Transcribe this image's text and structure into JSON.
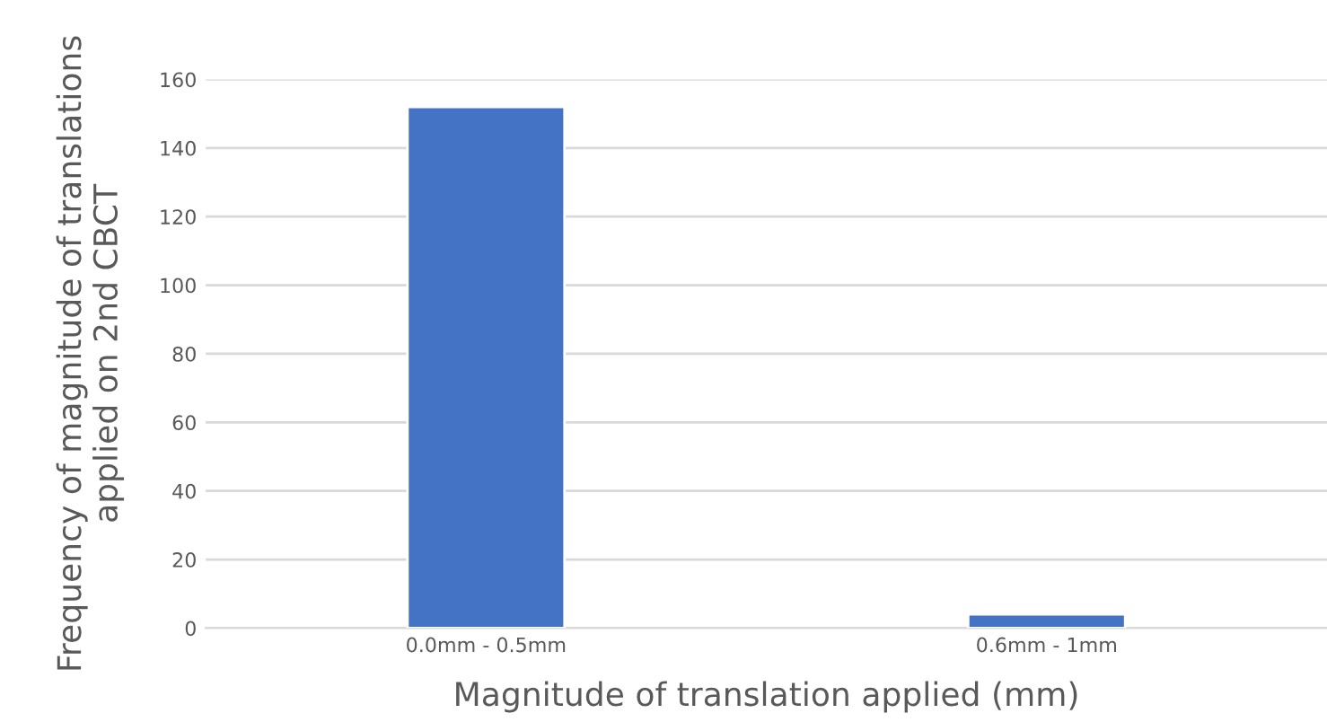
{
  "chart_data": {
    "type": "bar",
    "xlabel": "Magnitude of translation applied (mm)",
    "ylabel": "Frequency of magnitude of translations\napplied on 2nd CBCT",
    "categories": [
      "0.0mm - 0.5mm",
      "0.6mm - 1mm"
    ],
    "values": [
      152,
      4
    ],
    "color": "#4472c4",
    "ylim": [
      0,
      160
    ],
    "yticks": [
      0,
      20,
      40,
      60,
      80,
      100,
      120,
      140,
      160
    ],
    "grid": "y"
  }
}
